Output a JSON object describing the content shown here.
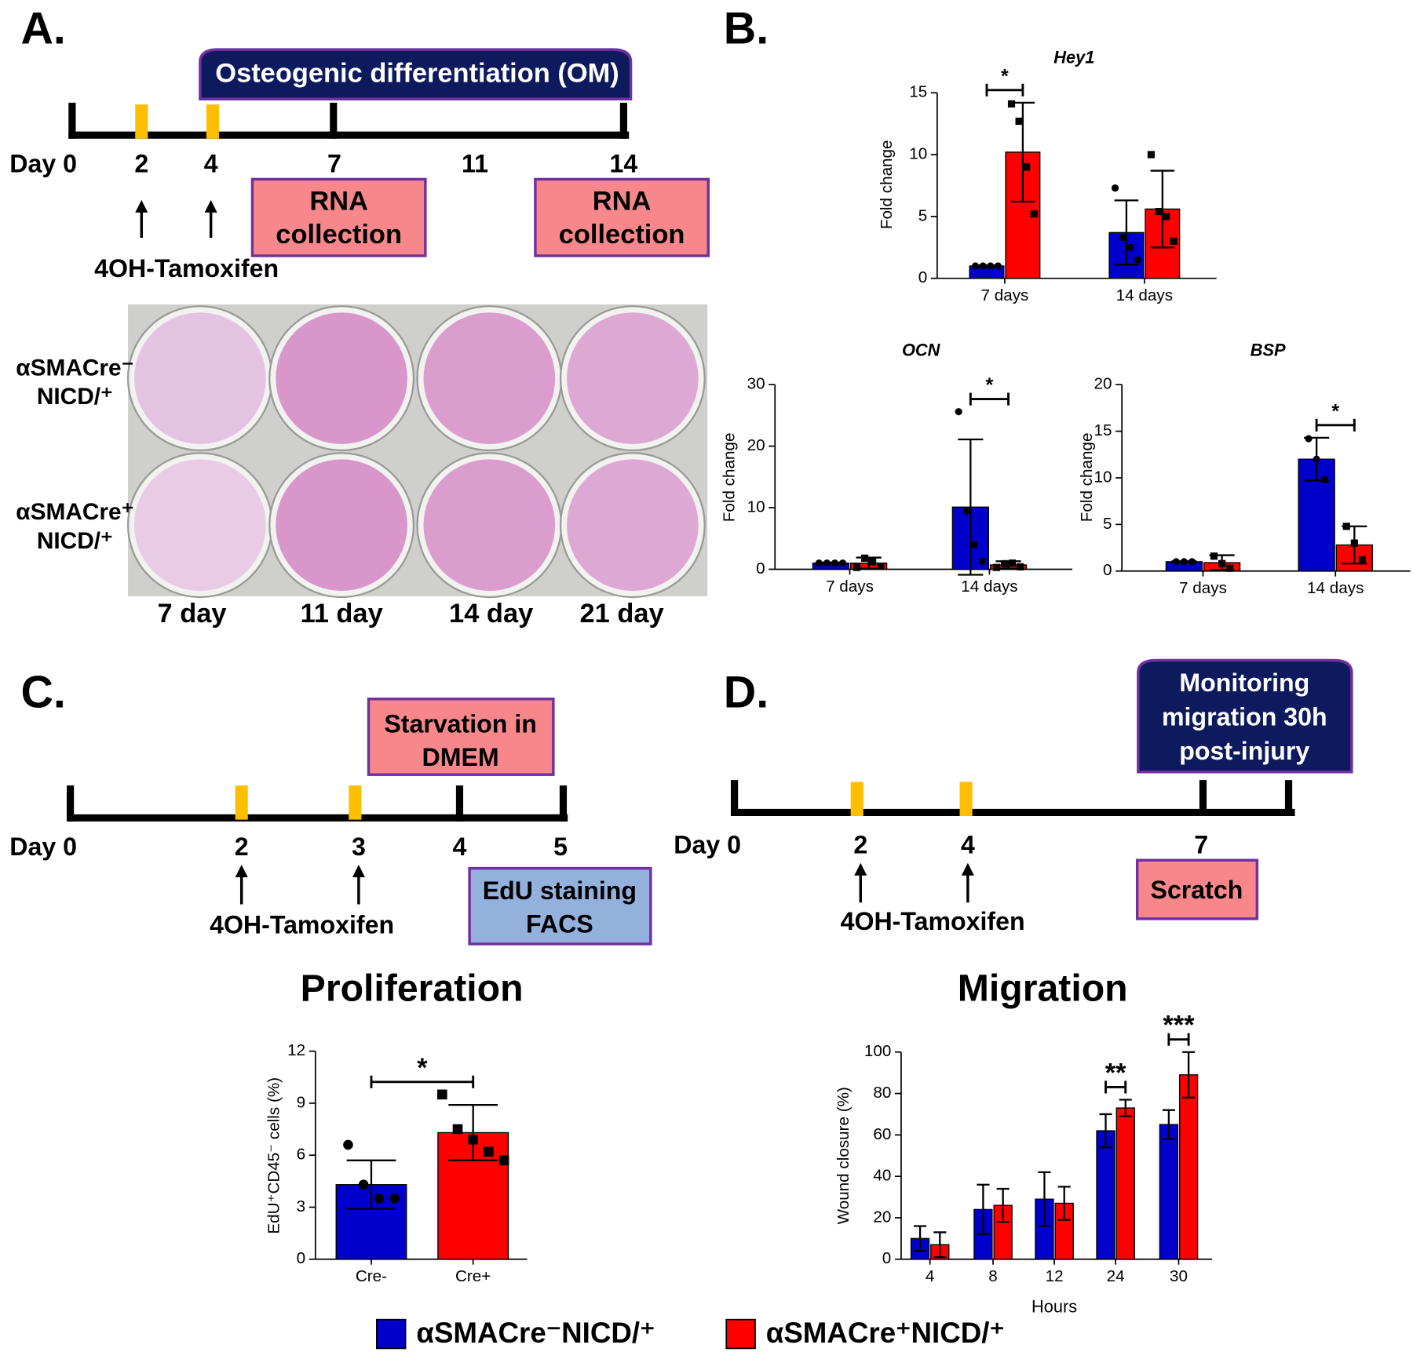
{
  "panel_labels": [
    "A.",
    "B.",
    "C.",
    "D."
  ],
  "timeline_a": {
    "banner": "Osteogenic differentiation (OM)",
    "days": [
      "Day 0",
      "2",
      "4",
      "7",
      "11",
      "14"
    ],
    "boxes": [
      [
        "RNA",
        "collection"
      ],
      [
        "RNA",
        "collection"
      ]
    ],
    "treatment": "4OH-Tamoxifen"
  },
  "staining": {
    "rows": [
      [
        "αSMACre⁻",
        "NICD/⁺"
      ],
      [
        "αSMACre⁺",
        "NICD/⁺"
      ]
    ],
    "columns": [
      "7 day",
      "11 day",
      "14 day",
      "21 day"
    ]
  },
  "timeline_c": {
    "days": [
      "Day 0",
      "2",
      "3",
      "4",
      "5"
    ],
    "boxes": [
      [
        "Starvation in",
        "DMEM"
      ],
      [
        "EdU staining",
        "FACS"
      ]
    ],
    "treatment": "4OH-Tamoxifen"
  },
  "timeline_d": {
    "banner": [
      "Monitoring",
      "migration 30h",
      "post-injury"
    ],
    "days": [
      "Day 0",
      "2",
      "4",
      "7"
    ],
    "boxes": [
      [
        "Scratch"
      ]
    ],
    "treatment": "4OH-Tamoxifen"
  },
  "chart_data": [
    {
      "type": "bar",
      "title": "Hey1",
      "ylabel": "Fold change",
      "categories": [
        "7 days",
        "14 days"
      ],
      "series": [
        {
          "color": "#0000cc",
          "values": [
            1.0,
            3.7
          ],
          "errors": [
            0.05,
            2.6
          ],
          "points": [
            [
              1,
              1,
              1,
              1
            ],
            [
              7.3,
              3.3,
              2.5,
              1.5
            ]
          ]
        },
        {
          "color": "#ff0000",
          "values": [
            10.2,
            5.6
          ],
          "errors": [
            4.0,
            3.1
          ],
          "points": [
            [
              14.1,
              12.7,
              9.0,
              5.2
            ],
            [
              10,
              5.4,
              5.0,
              3.0
            ]
          ]
        }
      ],
      "ylim": [
        0,
        15
      ],
      "yticks": [
        0,
        5,
        10,
        15
      ],
      "annotations": [
        {
          "label": "*",
          "category": "7 days"
        }
      ]
    },
    {
      "type": "bar",
      "title": "OCN",
      "ylabel": "Fold change",
      "categories": [
        "7 days",
        "14 days"
      ],
      "series": [
        {
          "color": "#0000cc",
          "values": [
            1.0,
            10.1
          ],
          "errors": [
            0.1,
            11
          ],
          "points": [
            [
              1,
              1,
              1,
              1
            ],
            [
              25.6,
              9.5,
              4,
              1.3
            ]
          ]
        },
        {
          "color": "#ff0000",
          "values": [
            1.0,
            0.7
          ],
          "errors": [
            0.9,
            0.6
          ],
          "points": [
            [
              0.3,
              1.8,
              1.2,
              0.5
            ],
            [
              0.3,
              0.9,
              1.0,
              0.4
            ]
          ]
        }
      ],
      "ylim": [
        0,
        30
      ],
      "yticks": [
        0,
        10,
        20,
        30
      ],
      "annotations": [
        {
          "label": "*",
          "category": "14 days"
        }
      ]
    },
    {
      "type": "bar",
      "title": "BSP",
      "ylabel": "Fold change",
      "categories": [
        "7 days",
        "14 days"
      ],
      "series": [
        {
          "color": "#0000cc",
          "values": [
            1.0,
            12.0
          ],
          "errors": [
            0.05,
            2.3
          ],
          "points": [
            [
              1,
              1,
              1
            ],
            [
              14.2,
              12.0,
              9.8
            ]
          ]
        },
        {
          "color": "#ff0000",
          "values": [
            0.9,
            2.8
          ],
          "errors": [
            0.8,
            2.0
          ],
          "points": [
            [
              1.6,
              0.8,
              0.3
            ],
            [
              4.8,
              3.0,
              1.2
            ]
          ]
        }
      ],
      "ylim": [
        0,
        20
      ],
      "yticks": [
        0,
        5,
        10,
        15,
        20
      ],
      "annotations": [
        {
          "label": "*",
          "category": "14 days"
        }
      ]
    },
    {
      "type": "bar",
      "title": "Proliferation",
      "ylabel": "EdU⁺CD45⁻ cells (%)",
      "categories": [
        "Cre-",
        "Cre+"
      ],
      "values": [
        4.3,
        7.3
      ],
      "errors": [
        1.4,
        1.6
      ],
      "colors": [
        "#0000cc",
        "#ff0000"
      ],
      "points": [
        [
          6.6,
          4.3,
          3.5,
          3.5
        ],
        [
          9.5,
          7.5,
          6.9,
          6.2,
          5.7
        ]
      ],
      "ylim": [
        0,
        12
      ],
      "yticks": [
        0,
        3,
        6,
        9,
        12
      ],
      "annotations": [
        {
          "label": "*"
        }
      ]
    },
    {
      "type": "bar",
      "title": "Migration",
      "ylabel": "Wound closure (%)",
      "xlabel": "Hours",
      "categories": [
        "4",
        "8",
        "12",
        "24",
        "30"
      ],
      "series": [
        {
          "name": "αSMACre⁻NICD/⁺",
          "color": "#0000cc",
          "values": [
            10,
            24,
            29,
            62,
            65
          ],
          "errors": [
            6,
            12,
            13,
            8,
            7
          ]
        },
        {
          "name": "αSMACre⁺NICD/⁺",
          "color": "#ff0000",
          "values": [
            7,
            26,
            27,
            73,
            89
          ],
          "errors": [
            6,
            8,
            8,
            4,
            11
          ]
        }
      ],
      "ylim": [
        0,
        100
      ],
      "yticks": [
        0,
        20,
        40,
        60,
        80,
        100
      ],
      "annotations": [
        {
          "label": "**",
          "category": "24"
        },
        {
          "label": "***",
          "category": "30"
        }
      ]
    }
  ]
}
